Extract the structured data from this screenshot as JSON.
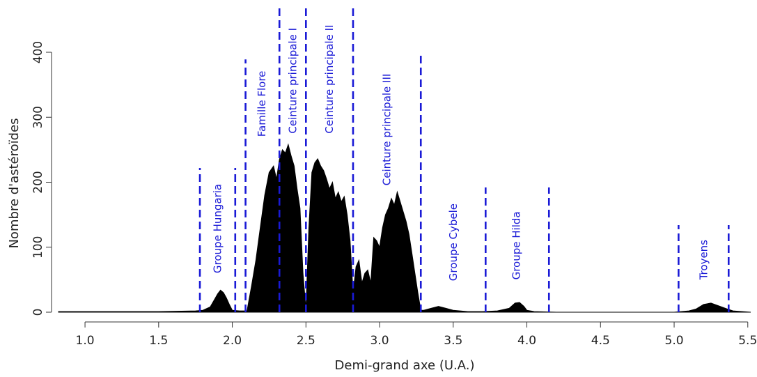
{
  "chart_data": {
    "type": "area",
    "title": "",
    "xlabel": "Demi-grand axe (U.A.)",
    "ylabel": "Nombre d'astéroïdes",
    "xlim": [
      0.82,
      5.52
    ],
    "ylim": [
      0,
      400
    ],
    "x_ticks": [
      "1.0",
      "1.5",
      "2.0",
      "2.5",
      "3.0",
      "3.5",
      "4.0",
      "4.5",
      "5.0",
      "5.5"
    ],
    "x_tick_values": [
      1.0,
      1.5,
      2.0,
      2.5,
      3.0,
      3.5,
      4.0,
      4.5,
      5.0,
      5.5
    ],
    "y_ticks": [
      "0",
      "100",
      "200",
      "300",
      "400"
    ],
    "y_tick_values": [
      0,
      100,
      200,
      300,
      400
    ],
    "grid": false,
    "line_color": "#1a1ad6",
    "fill_color": "#000000",
    "histogram": {
      "x": [
        0.82,
        1.0,
        1.5,
        1.75,
        1.8,
        1.85,
        1.88,
        1.9,
        1.92,
        1.94,
        1.96,
        1.98,
        2.0,
        2.05,
        2.1,
        2.13,
        2.16,
        2.19,
        2.22,
        2.25,
        2.28,
        2.3,
        2.32,
        2.34,
        2.36,
        2.38,
        2.4,
        2.42,
        2.44,
        2.46,
        2.48,
        2.5,
        2.52,
        2.54,
        2.56,
        2.58,
        2.6,
        2.62,
        2.64,
        2.66,
        2.68,
        2.7,
        2.72,
        2.74,
        2.76,
        2.78,
        2.8,
        2.82,
        2.84,
        2.86,
        2.88,
        2.9,
        2.92,
        2.94,
        2.96,
        2.98,
        3.0,
        3.02,
        3.04,
        3.06,
        3.08,
        3.1,
        3.12,
        3.14,
        3.16,
        3.18,
        3.2,
        3.22,
        3.24,
        3.26,
        3.28,
        3.3,
        3.35,
        3.4,
        3.45,
        3.5,
        3.6,
        3.7,
        3.8,
        3.88,
        3.92,
        3.95,
        3.98,
        4.0,
        4.05,
        4.2,
        4.6,
        5.0,
        5.1,
        5.15,
        5.2,
        5.25,
        5.3,
        5.36,
        5.4,
        5.52
      ],
      "y": [
        1,
        1,
        1,
        2,
        3,
        8,
        20,
        28,
        34,
        30,
        22,
        12,
        3,
        2,
        2,
        40,
        80,
        130,
        180,
        215,
        225,
        205,
        235,
        250,
        245,
        258,
        240,
        225,
        190,
        160,
        60,
        5,
        130,
        215,
        230,
        236,
        225,
        218,
        205,
        190,
        200,
        175,
        185,
        170,
        178,
        150,
        110,
        30,
        70,
        80,
        45,
        60,
        65,
        45,
        115,
        110,
        100,
        130,
        150,
        160,
        175,
        165,
        185,
        170,
        155,
        140,
        120,
        90,
        60,
        30,
        3,
        3,
        6,
        9,
        6,
        3,
        1,
        1,
        2,
        6,
        14,
        15,
        9,
        3,
        1,
        0,
        0,
        0,
        2,
        5,
        12,
        14,
        10,
        5,
        2,
        0
      ]
    },
    "boundaries": [
      1.78,
      2.02,
      2.09,
      2.32,
      2.5,
      2.82,
      3.28,
      3.72,
      4.15,
      5.03,
      5.37
    ],
    "boundary_tops": [
      222,
      222,
      389,
      473,
      473,
      473,
      397,
      192,
      192,
      134,
      134
    ],
    "regions": [
      {
        "label": "Groupe Hungaria",
        "x": 1.9,
        "y": 60
      },
      {
        "label": "Famille Flore",
        "x": 2.2,
        "y": 270
      },
      {
        "label": "Ceinture principale I",
        "x": 2.41,
        "y": 275
      },
      {
        "label": "Ceinture principale II",
        "x": 2.66,
        "y": 275
      },
      {
        "label": "Ceinture principale III",
        "x": 3.05,
        "y": 195
      },
      {
        "label": "Groupe Cybele",
        "x": 3.5,
        "y": 48
      },
      {
        "label": "Groupe Hilda",
        "x": 3.93,
        "y": 50
      },
      {
        "label": "Troyens",
        "x": 5.2,
        "y": 50
      }
    ]
  }
}
